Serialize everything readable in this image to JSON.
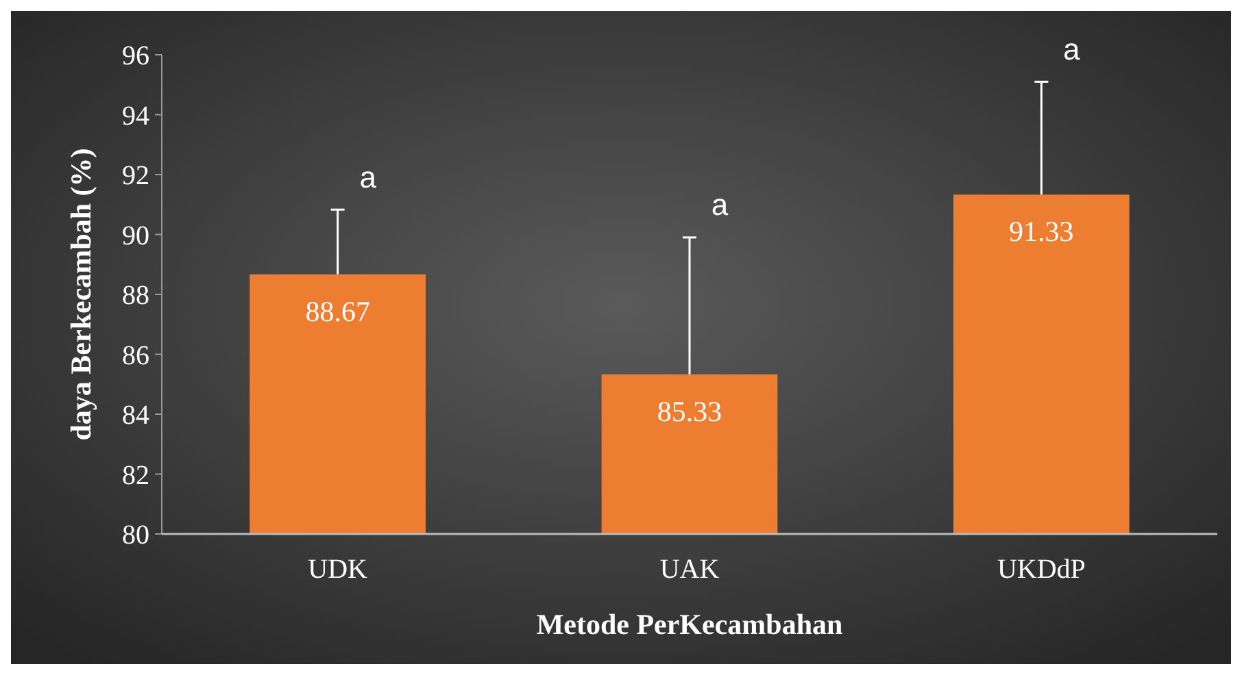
{
  "chart_data": {
    "type": "bar",
    "xlabel": "Metode PerKecambahan",
    "ylabel": "daya Berkecambah (%)",
    "categories": [
      "UDK",
      "UAK",
      "UKDdP"
    ],
    "values": [
      88.67,
      85.33,
      91.33
    ],
    "color": "#ed7d31",
    "errors": [
      [
        88.67,
        90.83
      ],
      [
        85.33,
        89.9
      ],
      [
        91.33,
        95.1
      ]
    ],
    "ylim": [
      80,
      96
    ],
    "yticks": [
      80,
      82,
      84,
      86,
      88,
      90,
      92,
      94,
      96
    ],
    "data_labels": true,
    "grid": false,
    "annotations": [
      "a",
      "a",
      "a"
    ]
  }
}
